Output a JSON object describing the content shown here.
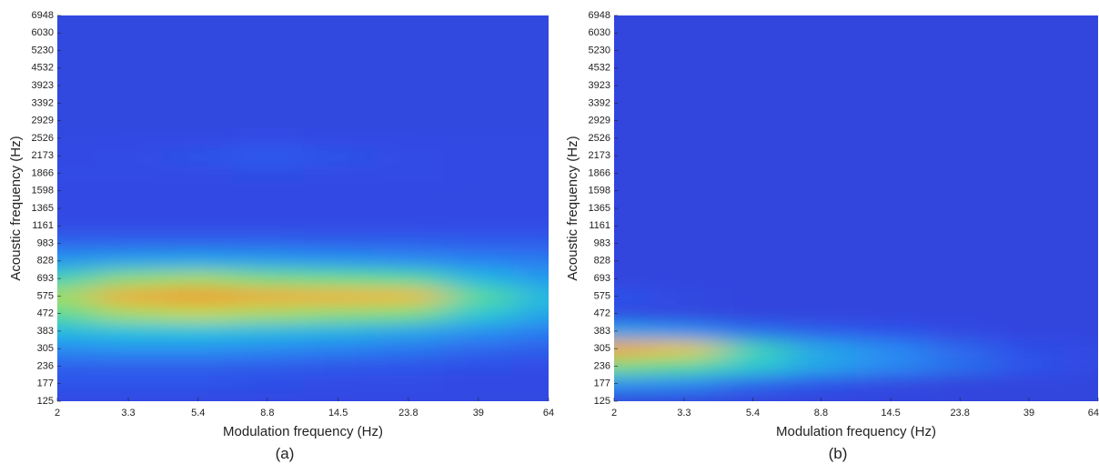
{
  "chart_data": [
    {
      "type": "heatmap",
      "caption": "(a)",
      "xlabel": "Modulation frequency (Hz)",
      "ylabel": "Acoustic frequency (Hz)",
      "xscale": "log",
      "xlim": [
        2,
        64
      ],
      "xticks": [
        2,
        3.3,
        5.4,
        8.8,
        14.5,
        23.8,
        39,
        64
      ],
      "x": [
        2,
        3.3,
        5.4,
        8.8,
        14.5,
        23.8,
        39,
        64
      ],
      "y": [
        125,
        177,
        236,
        305,
        383,
        472,
        575,
        693,
        828,
        983,
        1161,
        1365,
        1598,
        1866,
        2173,
        2526,
        2929,
        3392,
        3923,
        4532,
        5230,
        6030,
        6948
      ],
      "colormap": [
        "#3b2fc2",
        "#2f4fe8",
        "#2a8cf2",
        "#1fc6dc",
        "#5fe08a",
        "#d8dc3a",
        "#f2b838",
        "#ef8a34"
      ],
      "values": [
        [
          0.12,
          0.12,
          0.12,
          0.12,
          0.12,
          0.12,
          0.12,
          0.12
        ],
        [
          0.15,
          0.15,
          0.15,
          0.14,
          0.13,
          0.13,
          0.12,
          0.12
        ],
        [
          0.18,
          0.18,
          0.18,
          0.17,
          0.16,
          0.15,
          0.14,
          0.13
        ],
        [
          0.28,
          0.3,
          0.3,
          0.28,
          0.26,
          0.24,
          0.2,
          0.18
        ],
        [
          0.4,
          0.42,
          0.42,
          0.4,
          0.38,
          0.35,
          0.3,
          0.25
        ],
        [
          0.55,
          0.65,
          0.68,
          0.65,
          0.62,
          0.6,
          0.45,
          0.35
        ],
        [
          0.65,
          0.9,
          0.95,
          0.9,
          0.88,
          0.85,
          0.55,
          0.4
        ],
        [
          0.5,
          0.62,
          0.65,
          0.6,
          0.58,
          0.55,
          0.4,
          0.32
        ],
        [
          0.32,
          0.35,
          0.36,
          0.34,
          0.32,
          0.3,
          0.27,
          0.25
        ],
        [
          0.2,
          0.2,
          0.2,
          0.2,
          0.19,
          0.19,
          0.18,
          0.18
        ],
        [
          0.13,
          0.13,
          0.13,
          0.13,
          0.13,
          0.13,
          0.13,
          0.13
        ],
        [
          0.12,
          0.12,
          0.12,
          0.12,
          0.12,
          0.12,
          0.12,
          0.12
        ],
        [
          0.12,
          0.12,
          0.12,
          0.12,
          0.12,
          0.12,
          0.12,
          0.12
        ],
        [
          0.13,
          0.13,
          0.13,
          0.14,
          0.13,
          0.13,
          0.12,
          0.12
        ],
        [
          0.12,
          0.13,
          0.15,
          0.17,
          0.15,
          0.13,
          0.12,
          0.12
        ],
        [
          0.12,
          0.12,
          0.12,
          0.13,
          0.12,
          0.12,
          0.12,
          0.12
        ],
        [
          0.11,
          0.11,
          0.11,
          0.11,
          0.11,
          0.11,
          0.11,
          0.11
        ],
        [
          0.11,
          0.11,
          0.11,
          0.11,
          0.11,
          0.11,
          0.11,
          0.11
        ],
        [
          0.11,
          0.11,
          0.11,
          0.11,
          0.11,
          0.11,
          0.11,
          0.11
        ],
        [
          0.11,
          0.11,
          0.11,
          0.11,
          0.11,
          0.11,
          0.11,
          0.11
        ],
        [
          0.11,
          0.11,
          0.11,
          0.11,
          0.11,
          0.11,
          0.11,
          0.11
        ],
        [
          0.11,
          0.11,
          0.11,
          0.11,
          0.11,
          0.11,
          0.11,
          0.11
        ],
        [
          0.11,
          0.11,
          0.11,
          0.11,
          0.11,
          0.11,
          0.11,
          0.11
        ]
      ]
    },
    {
      "type": "heatmap",
      "caption": "(b)",
      "xlabel": "Modulation frequency (Hz)",
      "ylabel": "Acoustic frequency (Hz)",
      "xscale": "log",
      "xlim": [
        2,
        64
      ],
      "xticks": [
        2,
        3.3,
        5.4,
        8.8,
        14.5,
        23.8,
        39,
        64
      ],
      "x": [
        2,
        3.3,
        5.4,
        8.8,
        14.5,
        23.8,
        39,
        64
      ],
      "y": [
        125,
        177,
        236,
        305,
        383,
        472,
        575,
        693,
        828,
        983,
        1161,
        1365,
        1598,
        1866,
        2173,
        2526,
        2929,
        3392,
        3923,
        4532,
        5230,
        6030,
        6948
      ],
      "colormap": [
        "#3b2fc2",
        "#2f4fe8",
        "#2a8cf2",
        "#1fc6dc",
        "#5fe08a",
        "#d8dc3a",
        "#f2b838",
        "#ef8a34"
      ],
      "values": [
        [
          0.1,
          0.1,
          0.1,
          0.1,
          0.1,
          0.1,
          0.1,
          0.1
        ],
        [
          0.3,
          0.28,
          0.2,
          0.15,
          0.12,
          0.1,
          0.1,
          0.1
        ],
        [
          0.6,
          0.55,
          0.45,
          0.35,
          0.28,
          0.22,
          0.15,
          0.12
        ],
        [
          0.92,
          0.8,
          0.5,
          0.35,
          0.28,
          0.2,
          0.14,
          0.12
        ],
        [
          0.35,
          0.3,
          0.22,
          0.18,
          0.15,
          0.12,
          0.1,
          0.1
        ],
        [
          0.12,
          0.11,
          0.1,
          0.1,
          0.1,
          0.1,
          0.1,
          0.1
        ],
        [
          0.15,
          0.12,
          0.1,
          0.1,
          0.1,
          0.1,
          0.1,
          0.1
        ],
        [
          0.1,
          0.1,
          0.1,
          0.1,
          0.1,
          0.1,
          0.1,
          0.1
        ],
        [
          0.1,
          0.1,
          0.1,
          0.1,
          0.1,
          0.1,
          0.1,
          0.1
        ],
        [
          0.1,
          0.1,
          0.1,
          0.1,
          0.1,
          0.1,
          0.1,
          0.1
        ],
        [
          0.1,
          0.1,
          0.1,
          0.1,
          0.1,
          0.1,
          0.1,
          0.1
        ],
        [
          0.1,
          0.1,
          0.1,
          0.1,
          0.1,
          0.1,
          0.1,
          0.1
        ],
        [
          0.1,
          0.1,
          0.1,
          0.1,
          0.1,
          0.1,
          0.1,
          0.1
        ],
        [
          0.1,
          0.1,
          0.1,
          0.1,
          0.1,
          0.1,
          0.1,
          0.1
        ],
        [
          0.1,
          0.1,
          0.1,
          0.1,
          0.1,
          0.1,
          0.1,
          0.1
        ],
        [
          0.1,
          0.1,
          0.1,
          0.1,
          0.1,
          0.1,
          0.1,
          0.1
        ],
        [
          0.1,
          0.1,
          0.1,
          0.1,
          0.1,
          0.1,
          0.1,
          0.1
        ],
        [
          0.1,
          0.1,
          0.1,
          0.1,
          0.1,
          0.1,
          0.1,
          0.1
        ],
        [
          0.1,
          0.1,
          0.1,
          0.1,
          0.1,
          0.1,
          0.1,
          0.1
        ],
        [
          0.1,
          0.1,
          0.1,
          0.1,
          0.1,
          0.1,
          0.1,
          0.1
        ],
        [
          0.1,
          0.1,
          0.1,
          0.1,
          0.1,
          0.1,
          0.1,
          0.1
        ],
        [
          0.1,
          0.1,
          0.1,
          0.1,
          0.1,
          0.1,
          0.1,
          0.1
        ],
        [
          0.1,
          0.1,
          0.1,
          0.1,
          0.1,
          0.1,
          0.1,
          0.1
        ]
      ]
    }
  ]
}
